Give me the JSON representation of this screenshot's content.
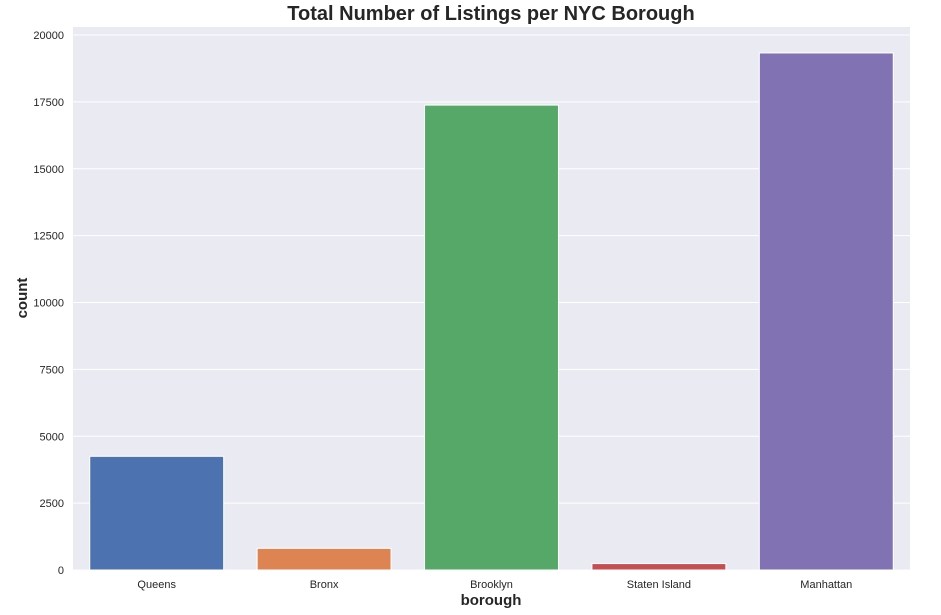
{
  "chart_data": {
    "type": "bar",
    "title": "Total Number of Listings per NYC Borough",
    "xlabel": "borough",
    "ylabel": "count",
    "categories": [
      "Queens",
      "Bronx",
      "Brooklyn",
      "Staten Island",
      "Manhattan"
    ],
    "values": [
      4250,
      810,
      17380,
      240,
      19330
    ],
    "colors": [
      "#4c72b0",
      "#dd8452",
      "#55a868",
      "#c44e52",
      "#8172b3"
    ],
    "ylim": [
      0,
      20300
    ],
    "yticks": [
      0,
      2500,
      5000,
      7500,
      10000,
      12500,
      15000,
      17500,
      20000
    ],
    "grid": true,
    "legend": "none",
    "background": "#eaeaf2",
    "grid_color": "#ffffff"
  }
}
